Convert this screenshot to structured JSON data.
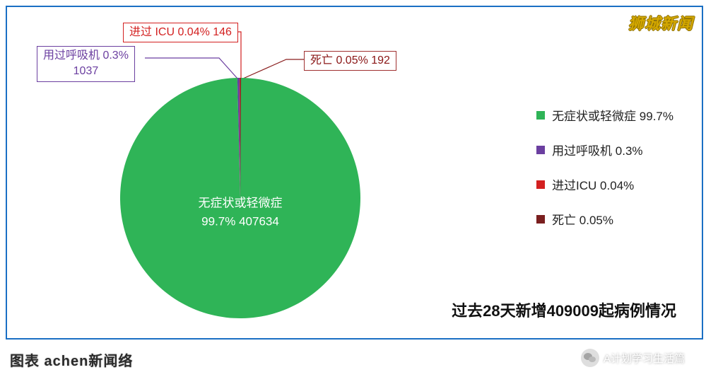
{
  "watermark_top": "狮城新闻",
  "chart": {
    "type": "pie",
    "slices": [
      {
        "key": "asymptomatic",
        "label": "无症状或轻微症 99.7%",
        "value": 407634,
        "percent": 99.7,
        "color": "#2fb457"
      },
      {
        "key": "ventilator",
        "label": "用过呼吸机 0.3%",
        "value": 1037,
        "percent": 0.3,
        "color": "#6b3fa0"
      },
      {
        "key": "icu",
        "label": "进过ICU 0.04%",
        "value": 146,
        "percent": 0.04,
        "color": "#d32020"
      },
      {
        "key": "death",
        "label": "死亡 0.05%",
        "value": 192,
        "percent": 0.05,
        "color": "#7a1f1f"
      }
    ],
    "center_label_line1": "无症状或轻微症",
    "center_label_line2": "99.7% 407634",
    "callouts": {
      "ventilator": {
        "line1": "用过呼吸机 0.3%",
        "line2": "1037"
      },
      "icu": {
        "text": "进过 ICU 0.04% 146"
      },
      "death": {
        "text": "死亡 0.05% 192"
      }
    },
    "background_color": "#ffffff",
    "border_color": "#1a6fc4",
    "legend_fontsize": 17,
    "callout_fontsize": 16,
    "center_fontsize": 17
  },
  "subtitle": "过去28天新增409009起病例情况",
  "bottom_caption": "图表 achen新闻络",
  "wechat_text": "A计划学习生活篇"
}
